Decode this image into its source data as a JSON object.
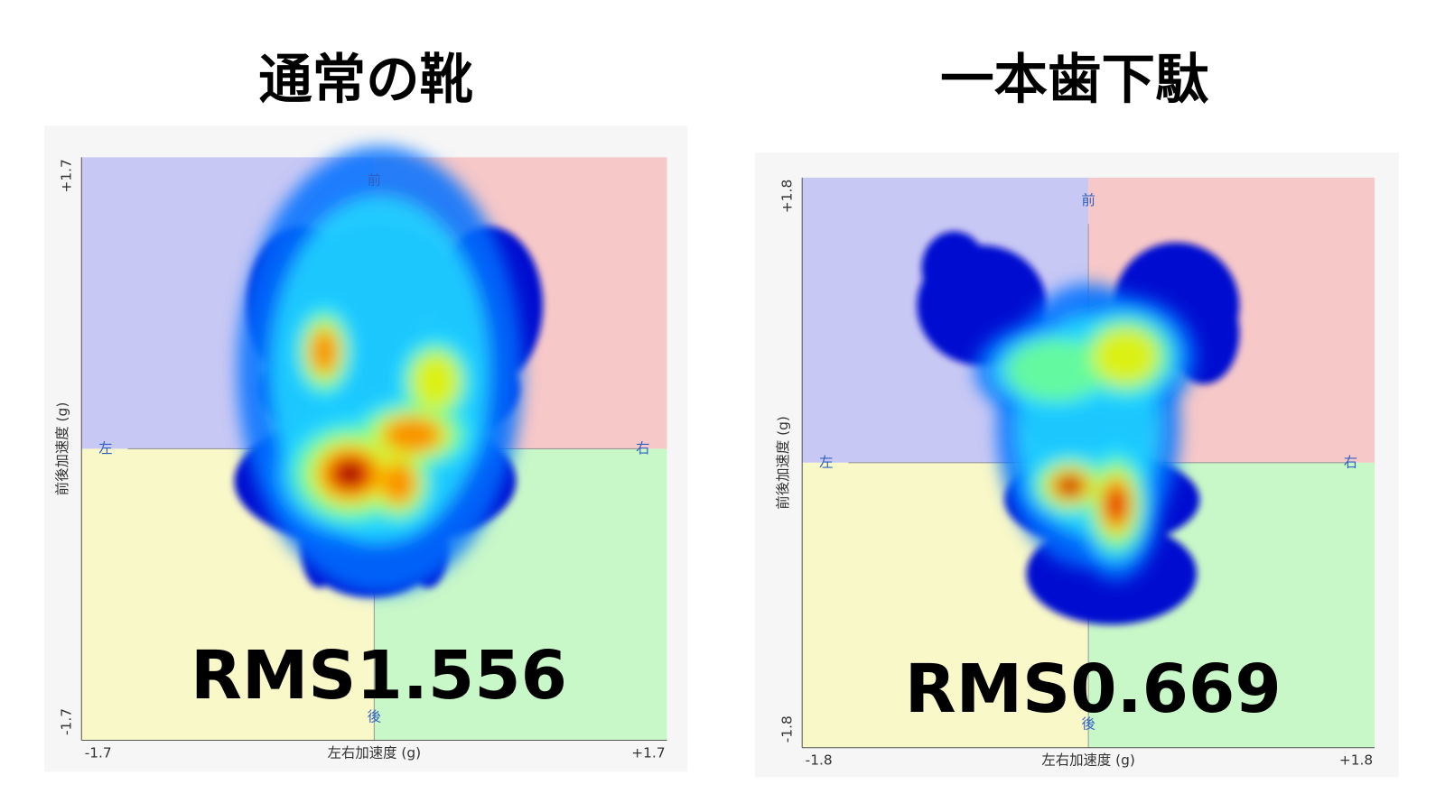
{
  "panels": [
    {
      "title": "通常の靴",
      "y_axis_top": "+1.7",
      "y_axis_bottom": "-1.7",
      "y_axis_label": "前後加速度 (g)",
      "x_axis_left": "-1.7",
      "x_axis_right": "+1.7",
      "x_axis_label": "左右加速度 (g)",
      "quadrant_labels": {
        "front": "前",
        "back": "後",
        "left": "左",
        "right": "右"
      },
      "rms": "RMS1.556"
    },
    {
      "title": "一本歯下駄",
      "y_axis_top": "+1.8",
      "y_axis_bottom": "-1.8",
      "y_axis_label": "前後加速度 (g)",
      "x_axis_left": "-1.8",
      "x_axis_right": "+1.8",
      "x_axis_label": "左右加速度 (g)",
      "quadrant_labels": {
        "front": "前",
        "back": "後",
        "left": "左",
        "right": "右"
      },
      "rms": "RMS0.669"
    }
  ]
}
